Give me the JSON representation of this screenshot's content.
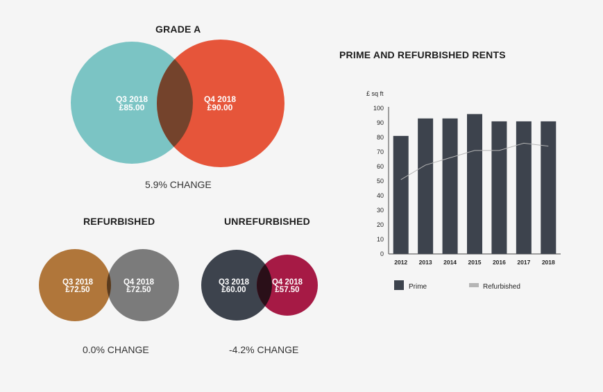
{
  "colors": {
    "teal": "#7bc4c4",
    "red_orange": "#e6553a",
    "overlap_grade_a": "#74432c",
    "brown": "#b0763a",
    "grey": "#7b7b7b",
    "overlap_refurb": "#5a3a1c",
    "dark_slate": "#3d434d",
    "crimson": "#a61a45",
    "overlap_unrefurb": "#2a0f18",
    "bar": "#3d434d",
    "line": "#b5b5b5"
  },
  "venns": {
    "grade_a": {
      "title": "GRADE A",
      "left_period": "Q3 2018",
      "left_value": "£85.00",
      "right_period": "Q4 2018",
      "right_value": "£90.00",
      "change": "5.9% CHANGE"
    },
    "refurbished": {
      "title": "REFURBISHED",
      "left_period": "Q3 2018",
      "left_value": "£72.50",
      "right_period": "Q4 2018",
      "right_value": "£72.50",
      "change": "0.0% CHANGE"
    },
    "unrefurbished": {
      "title": "UNREFURBISHED",
      "left_period": "Q3 2018",
      "left_value": "£60.00",
      "right_period": "Q4 2018",
      "right_value": "£57.50",
      "change": "-4.2% CHANGE"
    }
  },
  "chart_data": {
    "type": "bar",
    "title": "PRIME AND REFURBISHED RENTS",
    "ylabel": "£ sq ft",
    "xlabel": "",
    "categories": [
      "2012",
      "2013",
      "2014",
      "2015",
      "2016",
      "2017",
      "2018"
    ],
    "series": [
      {
        "name": "Prime",
        "type": "bar",
        "values": [
          81,
          93,
          93,
          96,
          91,
          91,
          91
        ]
      },
      {
        "name": "Refurbished",
        "type": "line",
        "values": [
          51,
          61,
          66,
          71,
          71,
          76,
          74
        ]
      }
    ],
    "ylim": [
      0,
      100
    ],
    "yticks": [
      "0",
      "10",
      "20",
      "30",
      "40",
      "50",
      "60",
      "70",
      "80",
      "90",
      "100"
    ],
    "grid": false,
    "legend": "bottom"
  }
}
